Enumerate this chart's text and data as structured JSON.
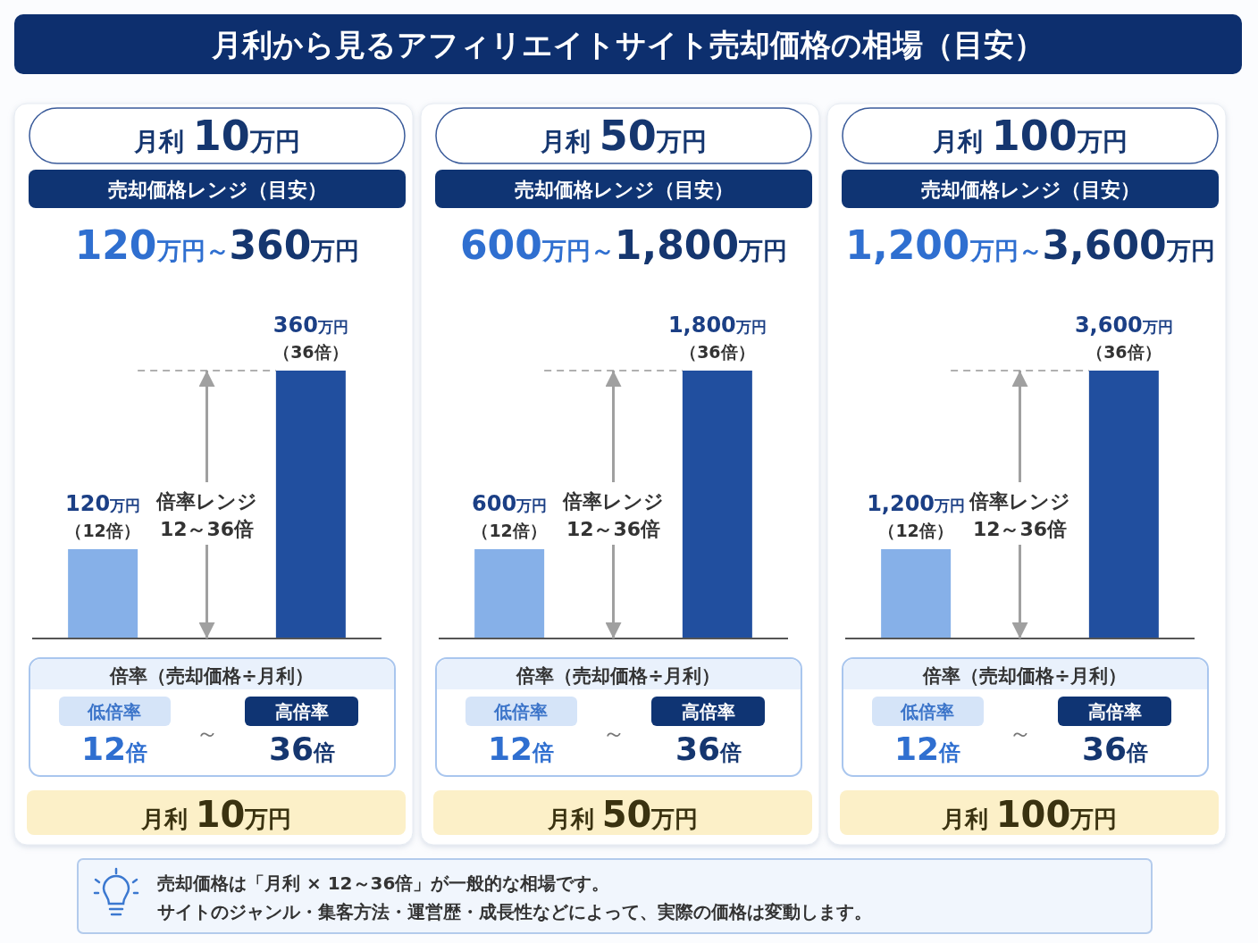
{
  "chart_data": [
    {
      "type": "bar",
      "title": "月利 10万円",
      "subtitle": "売却価格レンジ（目安）",
      "categories": [
        null,
        null
      ],
      "values": [
        120,
        360
      ],
      "colors": [
        "#86b0e8",
        "#214f9f"
      ],
      "value_labels": [
        "120万円（12倍）",
        "360万円（36倍）"
      ],
      "ref_lines": [
        {
          "axis": "y",
          "value": 360,
          "color": "#b0b0b0",
          "line_style": "dashed"
        }
      ],
      "annotations": [
        "120万円～360万円",
        "倍率レンジ\n12～36倍",
        "倍率（売却価格÷月利）",
        "低倍率",
        "12倍",
        "～",
        "高倍率",
        "36倍",
        "月利 10万円",
        "月利から見るアフィリエイトサイト売却価格の相場（目安）",
        "売却価格は「月利 × 12～36倍」が一般的な相場です。",
        "サイトのジャンル・集客方法・運営歴・成長性などによって、実際の価格は変動します。"
      ]
    },
    {
      "type": "bar",
      "title": "月利 50万円",
      "subtitle": "売却価格レンジ（目安）",
      "categories": [
        null,
        null
      ],
      "values": [
        600,
        1800
      ],
      "colors": [
        "#86b0e8",
        "#214f9f"
      ],
      "value_labels": [
        "600万円（12倍）",
        "1,800万円（36倍）"
      ],
      "ref_lines": [
        {
          "axis": "y",
          "value": 1800,
          "color": "#b0b0b0",
          "line_style": "dashed"
        }
      ],
      "annotations": [
        "600万円～1,800万円",
        "倍率レンジ\n12～36倍",
        "倍率（売却価格÷月利）",
        "低倍率",
        "12倍",
        "～",
        "高倍率",
        "36倍",
        "月利 50万円"
      ]
    },
    {
      "type": "bar",
      "title": "月利 100万円",
      "subtitle": "売却価格レンジ（目安）",
      "categories": [
        null,
        null
      ],
      "values": [
        1200,
        3600
      ],
      "colors": [
        "#86b0e8",
        "#214f9f"
      ],
      "value_labels": [
        "1,200万円（12倍）",
        "3,600万円（36倍）"
      ],
      "ref_lines": [
        {
          "axis": "y",
          "value": 3600,
          "color": "#b0b0b0",
          "line_style": "dashed"
        }
      ],
      "annotations": [
        "1,200万円～3,600万円",
        "倍率レンジ\n12～36倍",
        "倍率（売却価格÷月利）",
        "低倍率",
        "12倍",
        "～",
        "高倍率",
        "36倍",
        "月利 100万円"
      ]
    }
  ]
}
